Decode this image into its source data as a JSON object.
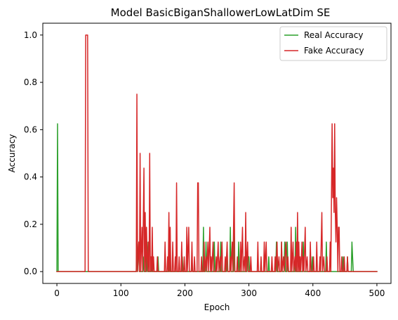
{
  "chart_data": {
    "type": "line",
    "title": "Model BasicBiganShallowerLowLatDim SE",
    "xlabel": "Epoch",
    "ylabel": "Accuracy",
    "xlim": [
      -22,
      522
    ],
    "ylim": [
      -0.05,
      1.05
    ],
    "xticks": [
      0,
      100,
      200,
      300,
      400,
      500
    ],
    "yticks": [
      0.0,
      0.2,
      0.4,
      0.6,
      0.8,
      1.0
    ],
    "ytick_labels": [
      "0.0",
      "0.2",
      "0.4",
      "0.6",
      "0.8",
      "1.0"
    ],
    "grid": false,
    "legend_position": "top-right",
    "series": [
      {
        "name": "Real Accuracy",
        "color": "#2ca02c",
        "points": [
          [
            0,
            0.0
          ],
          [
            1,
            0.625
          ],
          [
            2,
            0.0
          ],
          [
            124,
            0.0
          ],
          [
            125,
            0.125
          ],
          [
            126,
            0.0
          ],
          [
            128,
            0.125
          ],
          [
            129,
            0.0
          ],
          [
            134,
            0.0
          ],
          [
            135,
            0.0625
          ],
          [
            136,
            0.0
          ],
          [
            140,
            0.0
          ],
          [
            141,
            0.125
          ],
          [
            142,
            0.0
          ],
          [
            147,
            0.0
          ],
          [
            148,
            0.0625
          ],
          [
            149,
            0.0
          ],
          [
            157,
            0.0
          ],
          [
            158,
            0.0625
          ],
          [
            159,
            0.0
          ],
          [
            175,
            0.0
          ],
          [
            176,
            0.0625
          ],
          [
            177,
            0.0
          ],
          [
            195,
            0.0
          ],
          [
            196,
            0.0625
          ],
          [
            197,
            0.0
          ],
          [
            210,
            0.0
          ],
          [
            211,
            0.0625
          ],
          [
            212,
            0.0
          ],
          [
            228,
            0.0
          ],
          [
            229,
            0.1875
          ],
          [
            230,
            0.0
          ],
          [
            232,
            0.0
          ],
          [
            233,
            0.125
          ],
          [
            234,
            0.0
          ],
          [
            245,
            0.0
          ],
          [
            246,
            0.125
          ],
          [
            247,
            0.0
          ],
          [
            255,
            0.0
          ],
          [
            256,
            0.125
          ],
          [
            257,
            0.0
          ],
          [
            265,
            0.0
          ],
          [
            266,
            0.0625
          ],
          [
            267,
            0.0
          ],
          [
            270,
            0.0
          ],
          [
            271,
            0.1875
          ],
          [
            272,
            0.0
          ],
          [
            276,
            0.0
          ],
          [
            277,
            0.1875
          ],
          [
            278,
            0.0
          ],
          [
            283,
            0.0
          ],
          [
            284,
            0.125
          ],
          [
            285,
            0.0
          ],
          [
            297,
            0.0
          ],
          [
            298,
            0.0625
          ],
          [
            300,
            0.0625
          ],
          [
            301,
            0.0
          ],
          [
            330,
            0.0
          ],
          [
            331,
            0.0625
          ],
          [
            332,
            0.0
          ],
          [
            342,
            0.0
          ],
          [
            343,
            0.125
          ],
          [
            344,
            0.0
          ],
          [
            350,
            0.0
          ],
          [
            351,
            0.125
          ],
          [
            352,
            0.0
          ],
          [
            355,
            0.0
          ],
          [
            356,
            0.125
          ],
          [
            357,
            0.0
          ],
          [
            359,
            0.0
          ],
          [
            360,
            0.125
          ],
          [
            361,
            0.0
          ],
          [
            372,
            0.0
          ],
          [
            373,
            0.1875
          ],
          [
            374,
            0.0
          ],
          [
            384,
            0.0
          ],
          [
            385,
            0.125
          ],
          [
            386,
            0.0
          ],
          [
            398,
            0.0
          ],
          [
            399,
            0.0625
          ],
          [
            400,
            0.0
          ],
          [
            420,
            0.0
          ],
          [
            421,
            0.125
          ],
          [
            422,
            0.0
          ],
          [
            446,
            0.0
          ],
          [
            447,
            0.0625
          ],
          [
            448,
            0.0
          ],
          [
            453,
            0.0
          ],
          [
            454,
            0.0625
          ],
          [
            455,
            0.0
          ],
          [
            460,
            0.0
          ],
          [
            461,
            0.125
          ],
          [
            462,
            0.0625
          ],
          [
            463,
            0.0
          ],
          [
            500,
            0.0
          ]
        ]
      },
      {
        "name": "Fake Accuracy",
        "color": "#d62728",
        "points": [
          [
            0,
            0.0
          ],
          [
            44,
            0.0
          ],
          [
            45,
            1.0
          ],
          [
            48,
            1.0
          ],
          [
            49,
            0.0
          ],
          [
            124,
            0.0
          ],
          [
            125,
            0.75
          ],
          [
            126,
            0.0
          ],
          [
            128,
            0.125
          ],
          [
            129,
            0.0
          ],
          [
            130,
            0.5
          ],
          [
            131,
            0.0
          ],
          [
            133,
            0.1875
          ],
          [
            134,
            0.0
          ],
          [
            136,
            0.4375
          ],
          [
            137,
            0.0
          ],
          [
            138,
            0.25
          ],
          [
            139,
            0.0
          ],
          [
            140,
            0.1875
          ],
          [
            141,
            0.0625
          ],
          [
            142,
            0.0
          ],
          [
            143,
            0.125
          ],
          [
            144,
            0.0
          ],
          [
            145,
            0.5
          ],
          [
            146,
            0.0
          ],
          [
            147,
            0.0625
          ],
          [
            148,
            0.0
          ],
          [
            149,
            0.1875
          ],
          [
            150,
            0.0
          ],
          [
            151,
            0.0625
          ],
          [
            152,
            0.0
          ],
          [
            156,
            0.0
          ],
          [
            157,
            0.0625
          ],
          [
            158,
            0.0
          ],
          [
            168,
            0.0
          ],
          [
            169,
            0.125
          ],
          [
            170,
            0.0
          ],
          [
            172,
            0.0
          ],
          [
            173,
            0.0625
          ],
          [
            174,
            0.0
          ],
          [
            175,
            0.25
          ],
          [
            176,
            0.0
          ],
          [
            177,
            0.1875
          ],
          [
            178,
            0.0
          ],
          [
            180,
            0.0
          ],
          [
            181,
            0.125
          ],
          [
            182,
            0.0
          ],
          [
            184,
            0.0
          ],
          [
            185,
            0.0625
          ],
          [
            186,
            0.0
          ],
          [
            187,
            0.375
          ],
          [
            188,
            0.0
          ],
          [
            190,
            0.0
          ],
          [
            191,
            0.0625
          ],
          [
            192,
            0.0
          ],
          [
            194,
            0.0
          ],
          [
            195,
            0.125
          ],
          [
            196,
            0.0
          ],
          [
            198,
            0.0
          ],
          [
            199,
            0.0625
          ],
          [
            200,
            0.0
          ],
          [
            202,
            0.0
          ],
          [
            203,
            0.1875
          ],
          [
            204,
            0.0
          ],
          [
            206,
            0.1875
          ],
          [
            207,
            0.0
          ],
          [
            210,
            0.0
          ],
          [
            211,
            0.125
          ],
          [
            212,
            0.0
          ],
          [
            214,
            0.0
          ],
          [
            215,
            0.0625
          ],
          [
            216,
            0.0
          ],
          [
            219,
            0.0
          ],
          [
            220,
            0.375
          ],
          [
            221,
            0.375
          ],
          [
            222,
            0.0
          ],
          [
            225,
            0.0
          ],
          [
            226,
            0.0625
          ],
          [
            227,
            0.0
          ],
          [
            229,
            0.0
          ],
          [
            230,
            0.125
          ],
          [
            231,
            0.0
          ],
          [
            233,
            0.0625
          ],
          [
            234,
            0.0
          ],
          [
            236,
            0.125
          ],
          [
            237,
            0.0
          ],
          [
            239,
            0.1875
          ],
          [
            240,
            0.0
          ],
          [
            241,
            0.0625
          ],
          [
            242,
            0.0
          ],
          [
            244,
            0.125
          ],
          [
            245,
            0.0
          ],
          [
            248,
            0.0
          ],
          [
            249,
            0.0625
          ],
          [
            250,
            0.0
          ],
          [
            252,
            0.125
          ],
          [
            253,
            0.0
          ],
          [
            255,
            0.0625
          ],
          [
            256,
            0.0
          ],
          [
            258,
            0.125
          ],
          [
            259,
            0.0
          ],
          [
            262,
            0.0
          ],
          [
            263,
            0.0625
          ],
          [
            264,
            0.0
          ],
          [
            266,
            0.125
          ],
          [
            267,
            0.0
          ],
          [
            270,
            0.0
          ],
          [
            271,
            0.0625
          ],
          [
            272,
            0.0
          ],
          [
            274,
            0.125
          ],
          [
            275,
            0.0
          ],
          [
            277,
            0.375
          ],
          [
            278,
            0.0
          ],
          [
            281,
            0.0
          ],
          [
            282,
            0.0625
          ],
          [
            283,
            0.0
          ],
          [
            286,
            0.0
          ],
          [
            287,
            0.125
          ],
          [
            288,
            0.0
          ],
          [
            290,
            0.1875
          ],
          [
            291,
            0.0
          ],
          [
            293,
            0.0625
          ],
          [
            294,
            0.0
          ],
          [
            295,
            0.25
          ],
          [
            296,
            0.0
          ],
          [
            298,
            0.125
          ],
          [
            299,
            0.0
          ],
          [
            302,
            0.0
          ],
          [
            303,
            0.0625
          ],
          [
            304,
            0.0
          ],
          [
            313,
            0.0
          ],
          [
            314,
            0.125
          ],
          [
            315,
            0.0
          ],
          [
            318,
            0.0
          ],
          [
            319,
            0.0625
          ],
          [
            320,
            0.0
          ],
          [
            323,
            0.0
          ],
          [
            324,
            0.125
          ],
          [
            325,
            0.0
          ],
          [
            327,
            0.125
          ],
          [
            328,
            0.0
          ],
          [
            335,
            0.0
          ],
          [
            336,
            0.0625
          ],
          [
            337,
            0.0
          ],
          [
            340,
            0.0
          ],
          [
            341,
            0.0625
          ],
          [
            342,
            0.0
          ],
          [
            344,
            0.125
          ],
          [
            345,
            0.0
          ],
          [
            347,
            0.0625
          ],
          [
            348,
            0.0
          ],
          [
            350,
            0.0
          ],
          [
            351,
            0.125
          ],
          [
            352,
            0.0
          ],
          [
            354,
            0.0625
          ],
          [
            355,
            0.0
          ],
          [
            358,
            0.125
          ],
          [
            359,
            0.0
          ],
          [
            361,
            0.0625
          ],
          [
            362,
            0.0
          ],
          [
            365,
            0.0
          ],
          [
            366,
            0.1875
          ],
          [
            367,
            0.0
          ],
          [
            369,
            0.125
          ],
          [
            370,
            0.0
          ],
          [
            372,
            0.0625
          ],
          [
            373,
            0.0
          ],
          [
            374,
            0.125
          ],
          [
            375,
            0.0
          ],
          [
            376,
            0.25
          ],
          [
            377,
            0.0
          ],
          [
            378,
            0.125
          ],
          [
            379,
            0.0
          ],
          [
            380,
            0.0625
          ],
          [
            381,
            0.0
          ],
          [
            383,
            0.125
          ],
          [
            384,
            0.0
          ],
          [
            385,
            0.0625
          ],
          [
            386,
            0.0
          ],
          [
            388,
            0.1875
          ],
          [
            389,
            0.0
          ],
          [
            391,
            0.0625
          ],
          [
            392,
            0.0
          ],
          [
            395,
            0.0
          ],
          [
            396,
            0.125
          ],
          [
            397,
            0.0
          ],
          [
            400,
            0.0
          ],
          [
            401,
            0.0625
          ],
          [
            402,
            0.0
          ],
          [
            405,
            0.0
          ],
          [
            406,
            0.125
          ],
          [
            407,
            0.0
          ],
          [
            410,
            0.0
          ],
          [
            411,
            0.0625
          ],
          [
            412,
            0.0
          ],
          [
            414,
            0.25
          ],
          [
            415,
            0.0
          ],
          [
            417,
            0.0625
          ],
          [
            418,
            0.0
          ],
          [
            421,
            0.0
          ],
          [
            422,
            0.0625
          ],
          [
            423,
            0.0
          ],
          [
            426,
            0.0
          ],
          [
            427,
            0.125
          ],
          [
            428,
            0.0
          ],
          [
            430,
            0.625
          ],
          [
            431,
            0.3125
          ],
          [
            432,
            0.4375
          ],
          [
            433,
            0.25
          ],
          [
            434,
            0.625
          ],
          [
            435,
            0.25
          ],
          [
            436,
            0.125
          ],
          [
            437,
            0.3125
          ],
          [
            438,
            0.1875
          ],
          [
            439,
            0.0
          ],
          [
            440,
            0.1875
          ],
          [
            441,
            0.1875
          ],
          [
            442,
            0.0
          ],
          [
            444,
            0.0
          ],
          [
            445,
            0.0625
          ],
          [
            446,
            0.0
          ],
          [
            448,
            0.0
          ],
          [
            449,
            0.0625
          ],
          [
            450,
            0.0
          ],
          [
            453,
            0.0
          ],
          [
            454,
            0.0625
          ],
          [
            455,
            0.0
          ],
          [
            500,
            0.0
          ]
        ]
      }
    ]
  }
}
